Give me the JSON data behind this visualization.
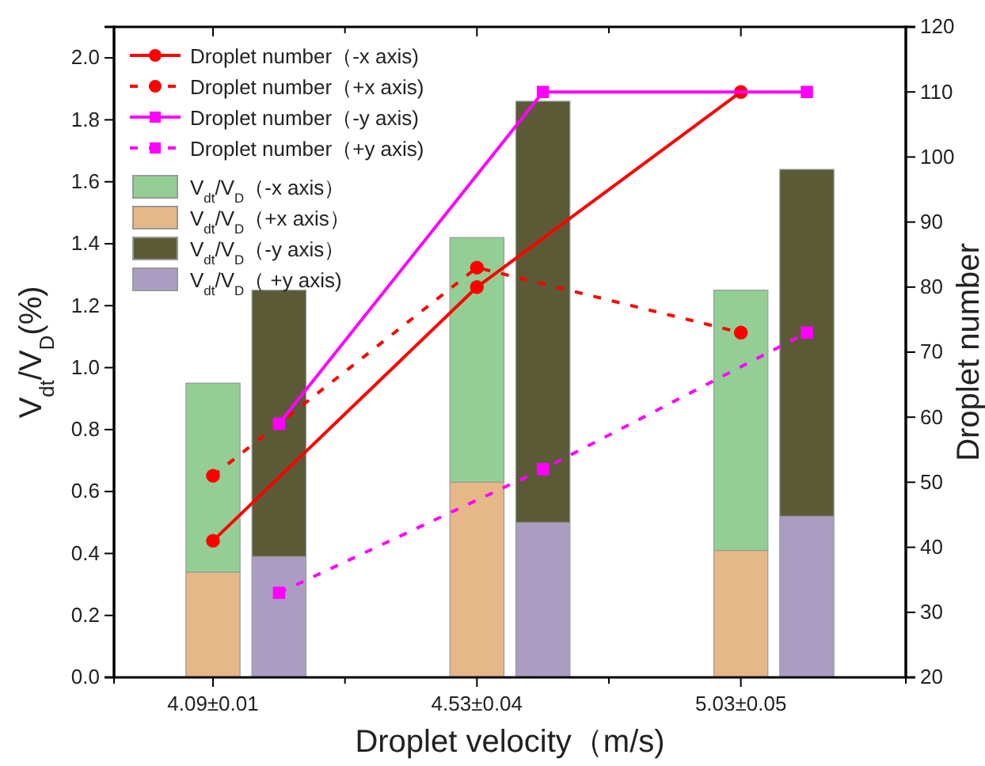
{
  "chart_data": {
    "type": "bar",
    "stacked": true,
    "xlabel": "Droplet velocity（m/s)",
    "ylabel": "V$_{dt}$/V$_{D}$(%)",
    "y2label": "Droplet number",
    "categories": [
      null,
      "4.09±0.01",
      null,
      null,
      null,
      "4.53±0.04",
      null,
      null,
      null,
      "5.03±0.05",
      null,
      null
    ],
    "ylim": [
      0,
      2.1
    ],
    "yticks": [
      {
        "value": 0,
        "label": "0.0"
      },
      {
        "value": 0.2,
        "label": "0.2"
      },
      {
        "value": 0.4,
        "label": "0.4"
      },
      {
        "value": 0.6,
        "label": "0.6"
      },
      {
        "value": 0.8,
        "label": "0.8"
      },
      {
        "value": 1,
        "label": "1.0"
      },
      {
        "value": 1.2,
        "label": "1.2"
      },
      {
        "value": 1.4,
        "label": "1.4"
      },
      {
        "value": 1.6,
        "label": "1.6"
      },
      {
        "value": 1.8,
        "label": "1.8"
      },
      {
        "value": 2,
        "label": "2.0"
      }
    ],
    "y2lim": [
      20,
      120
    ],
    "y2ticks": [
      20,
      30,
      40,
      50,
      60,
      70,
      80,
      90,
      100,
      110,
      120
    ],
    "legend": "top left",
    "marker": "circle",
    "line_style": "solid",
    "series": [
      {
        "name": "Droplet number（-x axis)",
        "type": "line",
        "axis": "y2",
        "color": "#ff0000",
        "values": [
          null,
          41,
          null,
          null,
          null,
          80,
          null,
          null,
          null,
          110,
          null,
          null
        ]
      },
      {
        "name": "Droplet number（+x axis)",
        "type": "line",
        "axis": "y2",
        "color": "#ff0000",
        "line_style": "dashed",
        "values": [
          null,
          51,
          null,
          null,
          null,
          83,
          null,
          null,
          null,
          73,
          null,
          null
        ]
      },
      {
        "name": "Droplet number（-y axis)",
        "type": "line",
        "axis": "y2",
        "color": "#ff00ff",
        "marker": "square",
        "values": [
          null,
          null,
          59,
          null,
          null,
          null,
          110,
          null,
          null,
          null,
          110,
          null
        ]
      },
      {
        "name": "Droplet number（+y axis)",
        "type": "line",
        "axis": "y2",
        "color": "#ff00ff",
        "marker": "square",
        "line_style": "dashed",
        "values": [
          null,
          null,
          33,
          null,
          null,
          null,
          52,
          null,
          null,
          null,
          73,
          null
        ]
      },
      {
        "name": "V$_{dt}$/V$_{D}$（+x axis）",
        "color": "#e6b887",
        "values": [
          null,
          0.34,
          null,
          null,
          null,
          0.63,
          null,
          null,
          null,
          0.41,
          null,
          null
        ]
      },
      {
        "name": "V$_{dt}$/V$_{D}$（-x axis）",
        "color": "#93cf95",
        "values": [
          null,
          0.61,
          null,
          null,
          null,
          0.79,
          null,
          null,
          null,
          0.84,
          null,
          null
        ]
      },
      {
        "name": "V$_{dt}$/V$_{D}$（ +y axis)",
        "color": "#ab9dc2",
        "values": [
          null,
          null,
          0.39,
          null,
          null,
          null,
          0.5,
          null,
          null,
          null,
          0.52,
          null
        ]
      },
      {
        "name": "V$_{dt}$/V$_{D}$（-y axis）",
        "color": "#5b5a37",
        "values": [
          null,
          null,
          0.86,
          null,
          null,
          null,
          1.36,
          null,
          null,
          null,
          1.12,
          null
        ]
      }
    ]
  }
}
